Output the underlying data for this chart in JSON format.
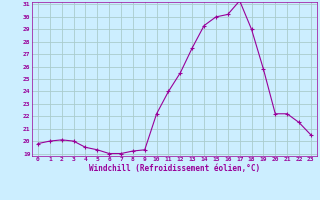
{
  "x": [
    0,
    1,
    2,
    3,
    4,
    5,
    6,
    7,
    8,
    9,
    10,
    11,
    12,
    13,
    14,
    15,
    16,
    17,
    18,
    19,
    20,
    21,
    22,
    23
  ],
  "y": [
    19.8,
    20.0,
    20.1,
    20.0,
    19.5,
    19.3,
    19.0,
    19.0,
    19.2,
    19.3,
    22.2,
    24.0,
    25.5,
    27.5,
    29.3,
    30.0,
    30.2,
    31.3,
    29.0,
    25.8,
    22.2,
    22.2,
    21.5,
    20.5
  ],
  "ylim_min": 19,
  "ylim_max": 31,
  "yticks": [
    19,
    20,
    21,
    22,
    23,
    24,
    25,
    26,
    27,
    28,
    29,
    30,
    31
  ],
  "xticks": [
    0,
    1,
    2,
    3,
    4,
    5,
    6,
    7,
    8,
    9,
    10,
    11,
    12,
    13,
    14,
    15,
    16,
    17,
    18,
    19,
    20,
    21,
    22,
    23
  ],
  "xlabel": "Windchill (Refroidissement éolien,°C)",
  "line_color": "#990099",
  "marker": "+",
  "markersize": 3,
  "linewidth": 0.8,
  "bg_color": "#cceeff",
  "grid_color": "#aacccc",
  "tick_color": "#990099",
  "xlabel_color": "#990099",
  "spine_color": "#990099"
}
